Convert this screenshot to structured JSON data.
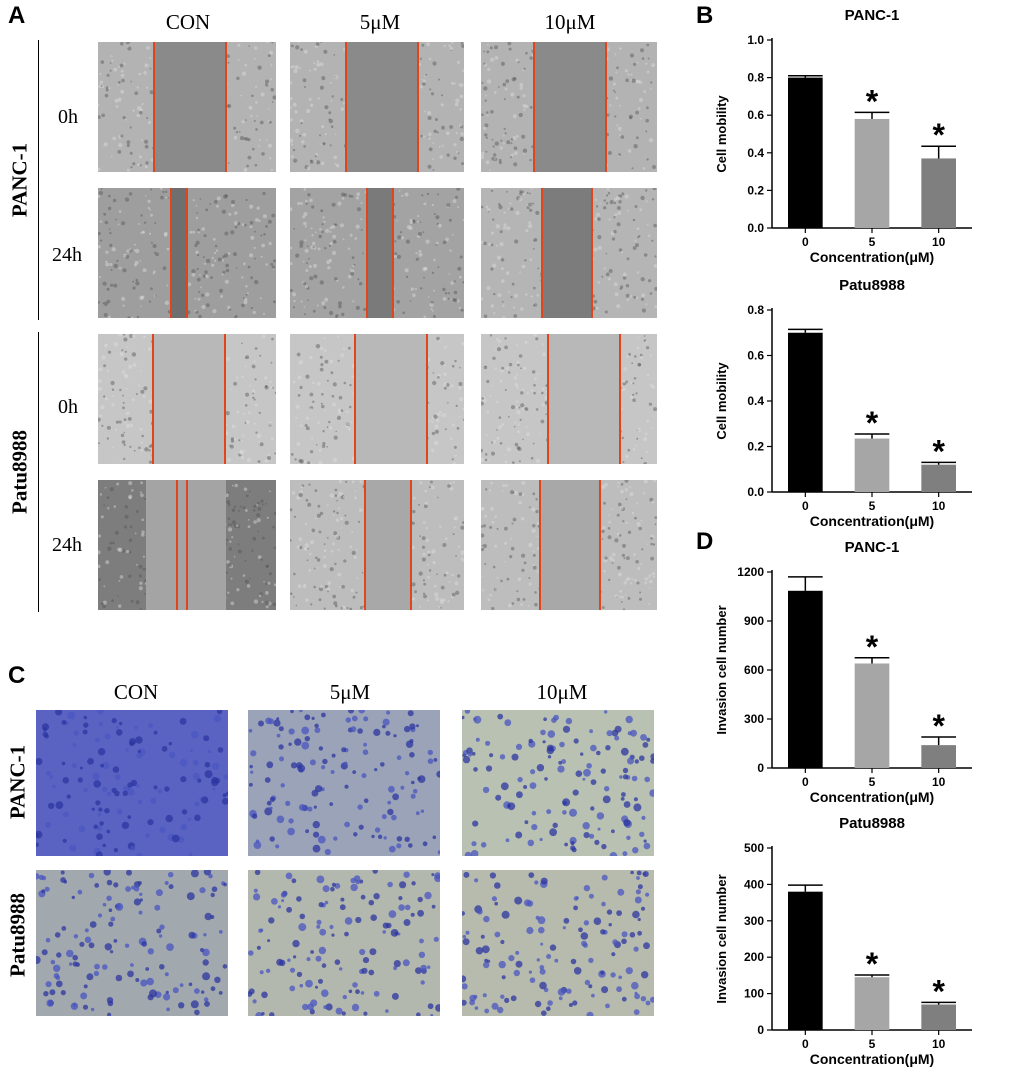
{
  "panels": {
    "A": {
      "letter": "A",
      "columns": [
        "CON",
        "5μM",
        "10μM"
      ],
      "groups": [
        {
          "name": "PANC-1",
          "rows": [
            "0h",
            "24h"
          ]
        },
        {
          "name": "Patu8988",
          "rows": [
            "0h",
            "24h"
          ]
        }
      ]
    },
    "B": {
      "letter": "B"
    },
    "C": {
      "letter": "C",
      "columns": [
        "CON",
        "5μM",
        "10μM"
      ],
      "rows": [
        "PANC-1",
        "Patu8988"
      ]
    },
    "D": {
      "letter": "D"
    }
  },
  "chart_data": [
    {
      "id": "B1",
      "type": "bar",
      "title": "PANC-1",
      "categories": [
        "0",
        "5",
        "10"
      ],
      "values": [
        0.8,
        0.58,
        0.37
      ],
      "errors": [
        0.01,
        0.035,
        0.065
      ],
      "significant": [
        false,
        true,
        true
      ],
      "significance_marker": "*",
      "colors": [
        "#000000",
        "#a6a6a6",
        "#7f7f7f"
      ],
      "xlabel": "Concentration(μM)",
      "ylabel": "Cell mobility",
      "ylim": [
        0,
        1.0
      ],
      "yticks": [
        0.0,
        0.2,
        0.4,
        0.6,
        0.8,
        1.0
      ],
      "ytick_labels": [
        "0.0",
        "0.2",
        "0.4",
        "0.6",
        "0.8",
        "1.0"
      ]
    },
    {
      "id": "B2",
      "type": "bar",
      "title": "Patu8988",
      "categories": [
        "0",
        "5",
        "10"
      ],
      "values": [
        0.7,
        0.235,
        0.12
      ],
      "errors": [
        0.015,
        0.02,
        0.01
      ],
      "significant": [
        false,
        true,
        true
      ],
      "significance_marker": "*",
      "colors": [
        "#000000",
        "#a6a6a6",
        "#7f7f7f"
      ],
      "xlabel": "Concentration(μM)",
      "ylabel": "Cell mobility",
      "ylim": [
        0,
        0.8
      ],
      "yticks": [
        0.0,
        0.2,
        0.4,
        0.6,
        0.8
      ],
      "ytick_labels": [
        "0.0",
        "0.2",
        "0.4",
        "0.6",
        "0.8"
      ]
    },
    {
      "id": "D1",
      "type": "bar",
      "title": "PANC-1",
      "categories": [
        "0",
        "5",
        "10"
      ],
      "values": [
        1085,
        640,
        140
      ],
      "errors": [
        85,
        35,
        50
      ],
      "significant": [
        false,
        true,
        true
      ],
      "significance_marker": "*",
      "colors": [
        "#000000",
        "#a6a6a6",
        "#7f7f7f"
      ],
      "xlabel": "Concentration(μM)",
      "ylabel": "Invasion cell number",
      "ylim": [
        0,
        1200
      ],
      "yticks": [
        0,
        300,
        600,
        900,
        1200
      ],
      "ytick_labels": [
        "0",
        "300",
        "600",
        "900",
        "1200"
      ]
    },
    {
      "id": "D2",
      "type": "bar",
      "title": "Patu8988",
      "categories": [
        "0",
        "5",
        "10"
      ],
      "values": [
        380,
        145,
        70
      ],
      "errors": [
        18,
        6,
        6
      ],
      "significant": [
        false,
        true,
        true
      ],
      "significance_marker": "*",
      "colors": [
        "#000000",
        "#a6a6a6",
        "#7f7f7f"
      ],
      "xlabel": "Concentration(μM)",
      "ylabel": "Invasion cell number",
      "ylim": [
        0,
        500
      ],
      "yticks": [
        0,
        100,
        200,
        300,
        400,
        500
      ],
      "ytick_labels": [
        "0",
        "100",
        "200",
        "300",
        "400",
        "500"
      ]
    }
  ]
}
